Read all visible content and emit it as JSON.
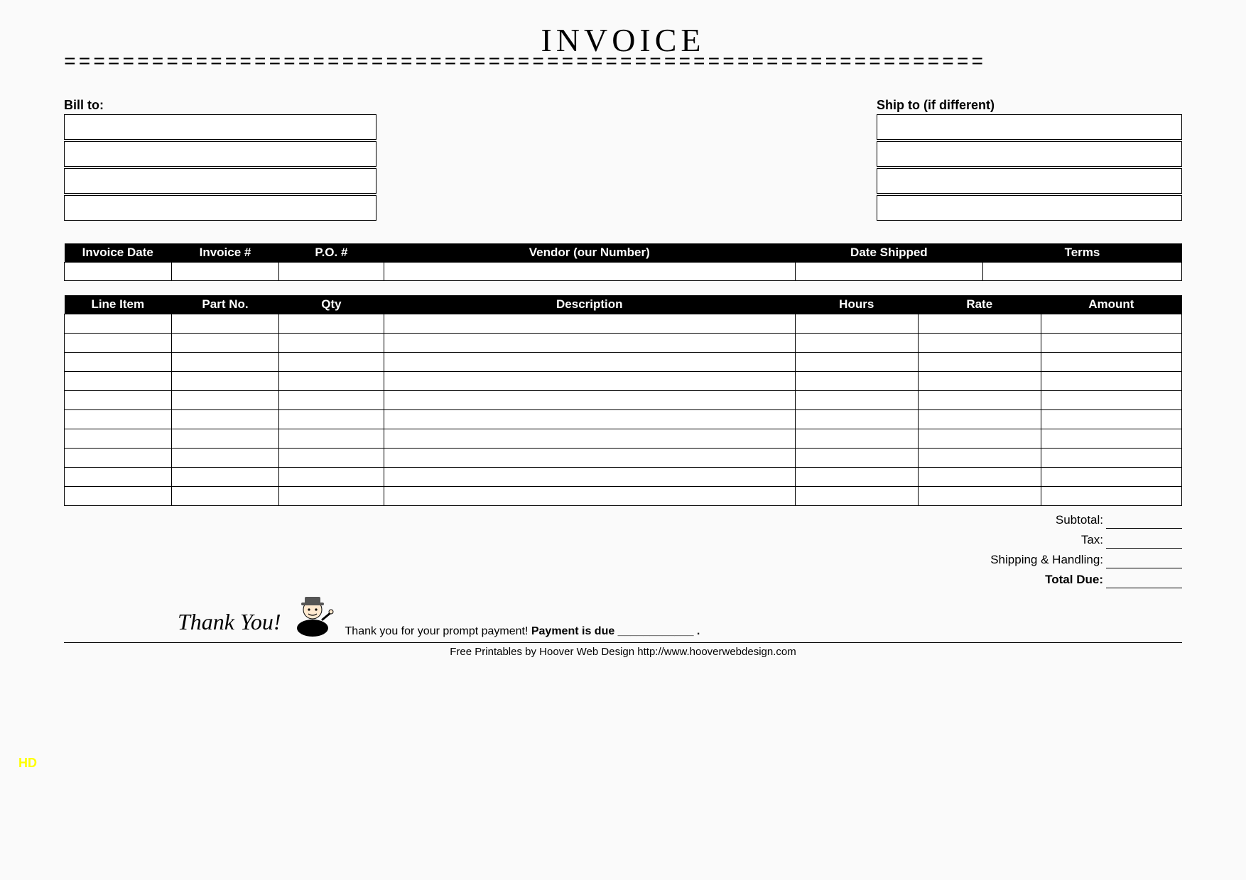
{
  "header": {
    "title": "INVOICE",
    "divider_text": "==============================================================="
  },
  "address": {
    "bill_to_label": "Bill to:",
    "ship_to_label": "Ship to (if different)",
    "row_count": 4
  },
  "meta_table": {
    "columns": [
      "Invoice Date",
      "Invoice #",
      "P.O. #",
      "Vendor (our Number)",
      "Date Shipped",
      "Terms"
    ],
    "col_widths_pct": [
      9.6,
      9.6,
      9.4,
      36.8,
      16.8,
      17.8
    ]
  },
  "items_table": {
    "columns": [
      "Line Item",
      "Part No.",
      "Qty",
      "Description",
      "Hours",
      "Rate",
      "Amount"
    ],
    "col_widths_pct": [
      9.6,
      9.6,
      9.4,
      36.8,
      11.0,
      11.0,
      12.6
    ],
    "row_count": 10
  },
  "totals": {
    "rows": [
      {
        "label": "Subtotal:",
        "bold": false
      },
      {
        "label": "Tax:",
        "bold": false
      },
      {
        "label": "Shipping & Handling:",
        "bold": false
      },
      {
        "label": "Total Due:",
        "bold": true
      }
    ]
  },
  "thankyou": {
    "script": "Thank You!",
    "line_prefix": "Thank you for your prompt payment! ",
    "line_bold": "Payment is due ____________ ."
  },
  "footer": {
    "credit": "Free Printables by Hoover Web Design http://www.hooverwebdesign.com"
  },
  "badge": {
    "hd": "HD"
  },
  "colors": {
    "bg": "#fafafa",
    "fg": "#000000",
    "header_bg": "#000000",
    "header_fg": "#ffffff",
    "badge": "#ffff00"
  }
}
